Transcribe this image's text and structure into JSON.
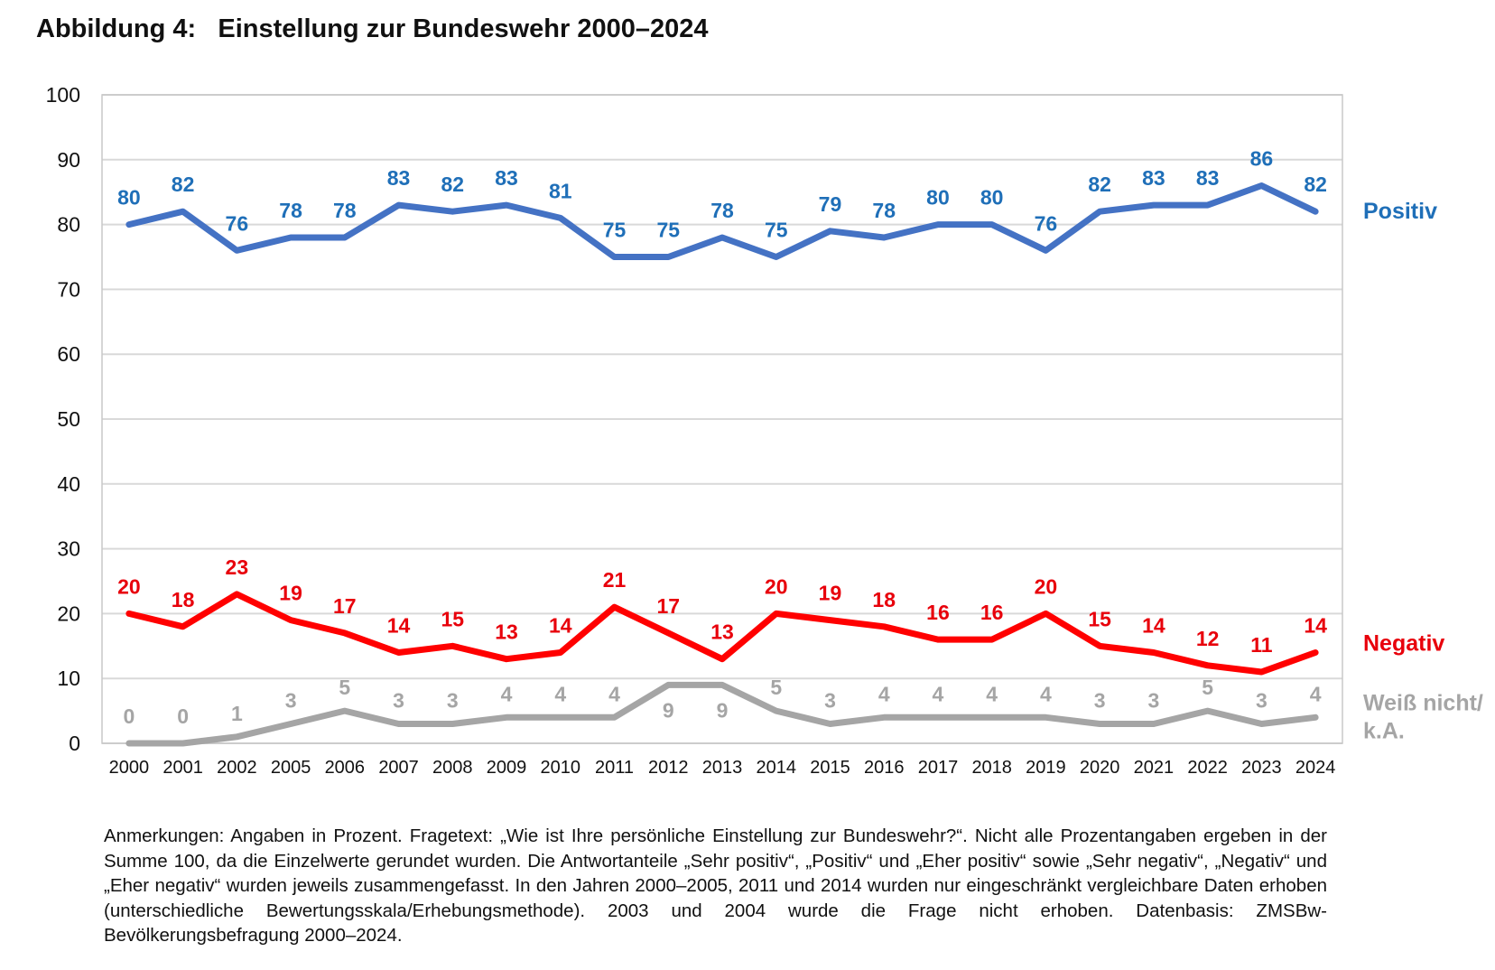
{
  "title": "Abbildung 4:   Einstellung zur Bundeswehr 2000–2024",
  "notes": "Anmerkungen: Angaben in Prozent. Fragetext: „Wie ist Ihre persönliche Einstellung zur Bundeswehr?“. Nicht alle Prozentangaben ergeben in der Summe 100, da die Einzelwerte gerundet wurden. Die Antwortanteile „Sehr positiv“, „Positiv“ und „Eher positiv“ sowie „Sehr negativ“, „Negativ“ und „Eher negativ“ wurden jeweils zusammengefasst. In den Jahren 2000–2005, 2011 und 2014 wurden nur eingeschränkt vergleichbare Daten erhoben (unterschiedliche Bewertungsskala/Erhebungsmethode). 2003 und 2004 wurde die Frage nicht erhoben. Datenbasis: ZMSBw-Bevölkerungsbefragung 2000–2024.",
  "chart_data": {
    "type": "line",
    "title": "Abbildung 4: Einstellung zur Bundeswehr 2000–2024",
    "xlabel": "",
    "ylabel": "",
    "ylim": [
      0,
      100
    ],
    "yticks": [
      0,
      10,
      20,
      30,
      40,
      50,
      60,
      70,
      80,
      90,
      100
    ],
    "grid": true,
    "legend_position": "right, at series end",
    "categories": [
      "2000",
      "2001",
      "2002",
      "2005",
      "2006",
      "2007",
      "2008",
      "2009",
      "2010",
      "2011",
      "2012",
      "2013",
      "2014",
      "2015",
      "2016",
      "2017",
      "2018",
      "2019",
      "2020",
      "2021",
      "2022",
      "2023",
      "2024"
    ],
    "series": [
      {
        "name": "Positiv",
        "legend_label": [
          "Positiv"
        ],
        "color": "#4472C4",
        "label_color": "#1F6FB8",
        "values": [
          80,
          82,
          76,
          78,
          78,
          83,
          82,
          83,
          81,
          75,
          75,
          78,
          75,
          79,
          78,
          80,
          80,
          76,
          82,
          83,
          83,
          86,
          82
        ]
      },
      {
        "name": "Negativ",
        "legend_label": [
          "Negativ"
        ],
        "color": "#FF0000",
        "label_color": "#E8000B",
        "values": [
          20,
          18,
          23,
          19,
          17,
          14,
          15,
          13,
          14,
          21,
          17,
          13,
          20,
          19,
          18,
          16,
          16,
          20,
          15,
          14,
          12,
          11,
          14
        ]
      },
      {
        "name": "Weiß nicht/k.A.",
        "legend_label": [
          "Weiß nicht/",
          "k.A."
        ],
        "color": "#A5A5A5",
        "label_color": "#A5A5A5",
        "values": [
          0,
          0,
          1,
          3,
          5,
          3,
          3,
          4,
          4,
          4,
          9,
          9,
          5,
          3,
          4,
          4,
          4,
          4,
          3,
          3,
          5,
          3,
          4
        ]
      }
    ]
  }
}
